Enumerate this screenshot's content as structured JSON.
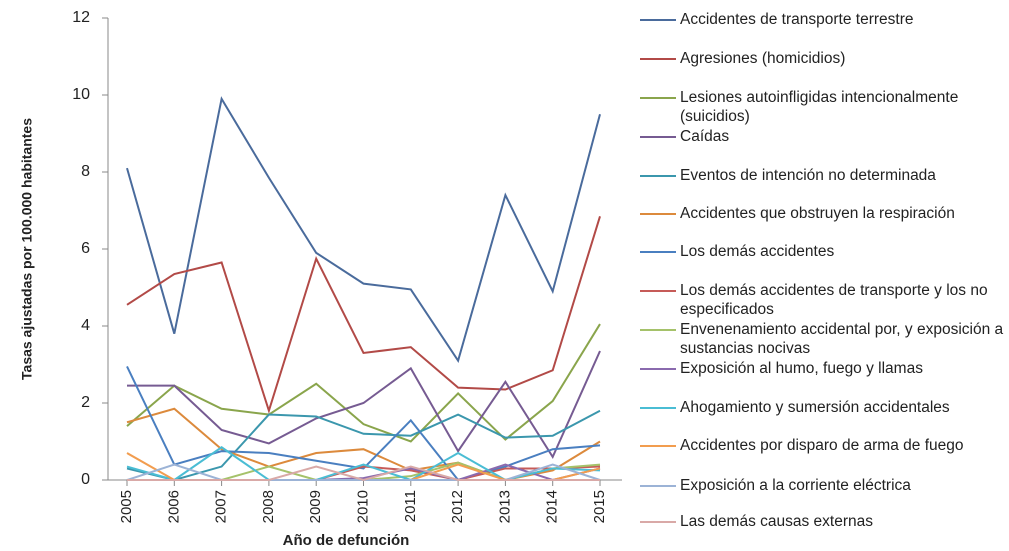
{
  "chart_data": {
    "type": "line",
    "x_label": "Año de defunción",
    "y_label": "Tasas ajustadas por 100.000 habitantes",
    "categories": [
      "2005",
      "2006",
      "2007",
      "2008",
      "2009",
      "2010",
      "2011",
      "2012",
      "2013",
      "2014",
      "2015"
    ],
    "ylim": [
      0,
      12
    ],
    "yticks": [
      0,
      2,
      4,
      6,
      8,
      10,
      12
    ],
    "grid": false,
    "legend": "right",
    "series": [
      {
        "name": "Accidentes de transporte terrestre",
        "color": "#4a6b9c",
        "values": [
          8.1,
          3.8,
          9.9,
          7.85,
          5.9,
          5.1,
          4.95,
          3.1,
          7.4,
          4.9,
          9.5
        ]
      },
      {
        "name": "Agresiones (homicidios)",
        "color": "#b24a47",
        "values": [
          4.55,
          5.35,
          5.65,
          1.8,
          5.75,
          3.3,
          3.45,
          2.4,
          2.35,
          2.85,
          6.85
        ]
      },
      {
        "name": "Lesiones autoinfligidas intencionalmente (suicidios)",
        "color": "#8aa54c",
        "values": [
          1.4,
          2.45,
          1.85,
          1.7,
          2.5,
          1.45,
          1.0,
          2.25,
          1.05,
          2.05,
          4.05
        ]
      },
      {
        "name": "Caídas",
        "color": "#765b92",
        "values": [
          2.45,
          2.45,
          1.3,
          0.95,
          1.6,
          2.0,
          2.9,
          0.75,
          2.55,
          0.6,
          3.35
        ]
      },
      {
        "name": "Eventos de intención no determinada",
        "color": "#3b97ad",
        "values": [
          0.3,
          0.0,
          0.35,
          1.7,
          1.65,
          1.2,
          1.15,
          1.7,
          1.1,
          1.15,
          1.8
        ]
      },
      {
        "name": "Accidentes que obstruyen la respiración",
        "color": "#dc8a3c",
        "values": [
          1.5,
          1.85,
          0.8,
          0.35,
          0.7,
          0.8,
          0.25,
          0.45,
          0.0,
          0.25,
          1.0
        ]
      },
      {
        "name": "Los demás accidentes",
        "color": "#4a7fc0",
        "values": [
          2.95,
          0.4,
          0.75,
          0.7,
          0.5,
          0.3,
          1.55,
          0.0,
          0.35,
          0.8,
          0.9
        ]
      },
      {
        "name": "Los demás accidentes de transporte y los no especificados",
        "color": "#c65b58",
        "values": [
          0.0,
          0.0,
          0.0,
          0.0,
          0.0,
          0.35,
          0.25,
          0.0,
          0.3,
          0.3,
          0.35
        ]
      },
      {
        "name": "Envenenamiento accidental por, y exposición a sustancias nocivas",
        "color": "#a5c26a",
        "values": [
          0.0,
          0.0,
          0.0,
          0.35,
          0.0,
          0.0,
          0.1,
          0.45,
          0.0,
          0.3,
          0.4
        ]
      },
      {
        "name": "Exposición al humo, fuego y llamas",
        "color": "#8a6aae",
        "values": [
          0.0,
          0.0,
          0.0,
          0.0,
          0.0,
          0.05,
          0.3,
          0.0,
          0.4,
          0.0,
          0.3
        ]
      },
      {
        "name": "Ahogamiento y sumersión accidentales",
        "color": "#4abdd4",
        "values": [
          0.35,
          0.0,
          0.85,
          0.0,
          0.0,
          0.4,
          0.0,
          0.7,
          0.0,
          0.3,
          0.25
        ]
      },
      {
        "name": "Accidentes por disparo de arma de fuego",
        "color": "#f29d4f",
        "values": [
          0.7,
          0.0,
          0.0,
          0.0,
          0.0,
          0.0,
          0.0,
          0.4,
          0.0,
          0.0,
          0.3
        ]
      },
      {
        "name": "Exposición a la corriente eléctrica",
        "color": "#9cb3d6",
        "values": [
          0.0,
          0.4,
          0.0,
          0.0,
          0.0,
          0.0,
          0.0,
          0.0,
          0.0,
          0.4,
          0.0
        ]
      },
      {
        "name": "Las demás causas externas",
        "color": "#d9a9a7",
        "values": [
          0.0,
          0.0,
          0.0,
          0.0,
          0.35,
          0.0,
          0.35,
          0.0,
          0.0,
          0.0,
          0.0
        ]
      }
    ]
  }
}
